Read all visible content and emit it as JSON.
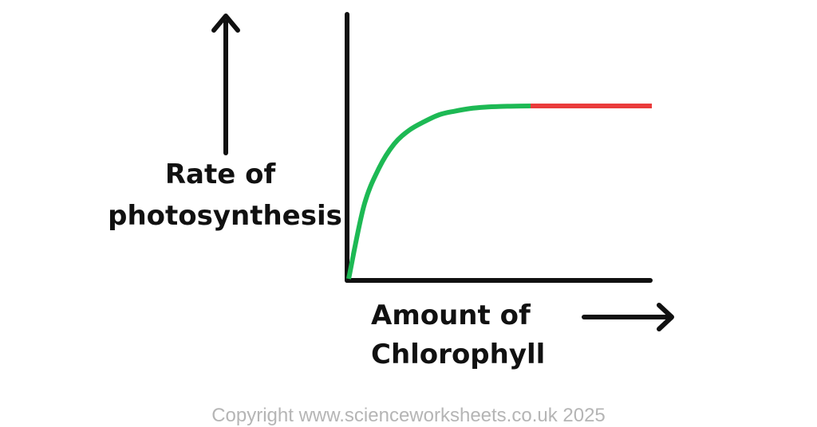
{
  "chart_data": {
    "type": "line",
    "ylabel_lines": [
      "Rate of",
      "photosynthesis"
    ],
    "xlabel_lines": [
      "Amount of",
      "Chlorophyll"
    ],
    "series": [
      {
        "x": [
          0,
          0.05,
          0.1,
          0.15,
          0.2,
          0.25,
          0.3,
          0.35,
          0.4,
          0.45,
          0.5,
          0.55,
          0.6
        ],
        "y": [
          0,
          0.42,
          0.64,
          0.78,
          0.86,
          0.91,
          0.95,
          0.97,
          0.985,
          0.993,
          0.997,
          0.999,
          1.0
        ],
        "color": "#1db954"
      },
      {
        "x": [
          0.6,
          1.0
        ],
        "y": [
          1.0,
          1.0
        ],
        "color": "#ea3b3b"
      }
    ],
    "grid": false,
    "legend": false
  },
  "footer": {
    "copyright": "Copyright www.scienceworksheets.co.uk 2025"
  }
}
